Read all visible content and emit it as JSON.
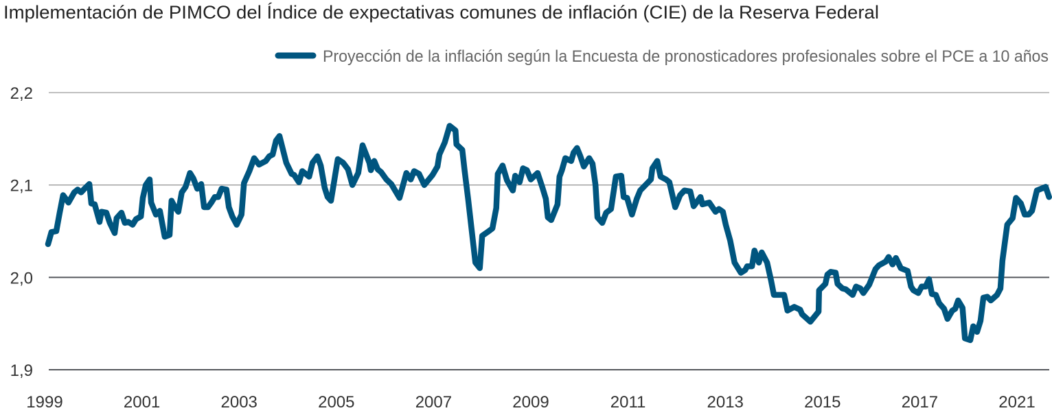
{
  "chart_data": {
    "type": "line",
    "title": "Implementación de PIMCO del Índice de expectativas comunes de inflación (CIE) de la Reserva Federal",
    "xlabel": "",
    "ylabel": "",
    "ylim": [
      1.9,
      2.2
    ],
    "yticks": [
      "2,2",
      "2,1",
      "2,0",
      "1,9"
    ],
    "ytick_values": [
      2.2,
      2.1,
      2.0,
      1.9
    ],
    "xtick_labels": [
      "1999",
      "2001",
      "2003",
      "2005",
      "2007",
      "2009",
      "2011",
      "2013",
      "2015",
      "2017",
      "2021"
    ],
    "grid": true,
    "legend_position": "top-right",
    "colors": {
      "line": "#00557f",
      "grid_light": "#9a9a9a",
      "grid_dark": "#55575c",
      "title": "#222222",
      "legend_text": "#666666",
      "tick_text": "#333333"
    },
    "series": [
      {
        "name": "Proyección de la inflación según la Encuesta de pronosticadores profesionales sobre el PCE a 10 años",
        "points": [
          [
            1999.07,
            2.036
          ],
          [
            1999.14,
            2.049
          ],
          [
            1999.24,
            2.05
          ],
          [
            1999.31,
            2.07
          ],
          [
            1999.38,
            2.089
          ],
          [
            1999.49,
            2.081
          ],
          [
            1999.61,
            2.092
          ],
          [
            1999.68,
            2.095
          ],
          [
            1999.75,
            2.092
          ],
          [
            1999.82,
            2.096
          ],
          [
            1999.92,
            2.101
          ],
          [
            1999.96,
            2.08
          ],
          [
            2000.03,
            2.079
          ],
          [
            2000.13,
            2.06
          ],
          [
            2000.17,
            2.071
          ],
          [
            2000.27,
            2.07
          ],
          [
            2000.34,
            2.059
          ],
          [
            2000.44,
            2.048
          ],
          [
            2000.48,
            2.064
          ],
          [
            2000.58,
            2.07
          ],
          [
            2000.65,
            2.059
          ],
          [
            2000.72,
            2.06
          ],
          [
            2000.81,
            2.057
          ],
          [
            2000.88,
            2.063
          ],
          [
            2000.98,
            2.066
          ],
          [
            2001.02,
            2.086
          ],
          [
            2001.08,
            2.1
          ],
          [
            2001.16,
            2.106
          ],
          [
            2001.19,
            2.081
          ],
          [
            2001.29,
            2.068
          ],
          [
            2001.37,
            2.072
          ],
          [
            2001.47,
            2.044
          ],
          [
            2001.57,
            2.046
          ],
          [
            2001.61,
            2.083
          ],
          [
            2001.68,
            2.076
          ],
          [
            2001.75,
            2.071
          ],
          [
            2001.82,
            2.092
          ],
          [
            2001.9,
            2.098
          ],
          [
            2001.99,
            2.113
          ],
          [
            2002.06,
            2.107
          ],
          [
            2002.14,
            2.096
          ],
          [
            2002.22,
            2.101
          ],
          [
            2002.28,
            2.076
          ],
          [
            2002.36,
            2.076
          ],
          [
            2002.43,
            2.081
          ],
          [
            2002.5,
            2.087
          ],
          [
            2002.57,
            2.087
          ],
          [
            2002.64,
            2.096
          ],
          [
            2002.74,
            2.095
          ],
          [
            2002.79,
            2.076
          ],
          [
            2002.86,
            2.066
          ],
          [
            2002.95,
            2.057
          ],
          [
            2003.05,
            2.068
          ],
          [
            2003.1,
            2.102
          ],
          [
            2003.21,
            2.115
          ],
          [
            2003.31,
            2.129
          ],
          [
            2003.41,
            2.122
          ],
          [
            2003.55,
            2.126
          ],
          [
            2003.62,
            2.131
          ],
          [
            2003.69,
            2.133
          ],
          [
            2003.76,
            2.148
          ],
          [
            2003.83,
            2.153
          ],
          [
            2003.97,
            2.124
          ],
          [
            2004.08,
            2.112
          ],
          [
            2004.13,
            2.111
          ],
          [
            2004.23,
            2.103
          ],
          [
            2004.3,
            2.115
          ],
          [
            2004.44,
            2.109
          ],
          [
            2004.51,
            2.124
          ],
          [
            2004.61,
            2.131
          ],
          [
            2004.68,
            2.121
          ],
          [
            2004.76,
            2.097
          ],
          [
            2004.82,
            2.087
          ],
          [
            2004.89,
            2.083
          ],
          [
            2005.03,
            2.128
          ],
          [
            2005.14,
            2.124
          ],
          [
            2005.24,
            2.117
          ],
          [
            2005.33,
            2.1
          ],
          [
            2005.45,
            2.113
          ],
          [
            2005.54,
            2.143
          ],
          [
            2005.68,
            2.124
          ],
          [
            2005.71,
            2.116
          ],
          [
            2005.78,
            2.126
          ],
          [
            2005.85,
            2.117
          ],
          [
            2005.92,
            2.114
          ],
          [
            2006.03,
            2.106
          ],
          [
            2006.13,
            2.101
          ],
          [
            2006.3,
            2.086
          ],
          [
            2006.44,
            2.113
          ],
          [
            2006.53,
            2.106
          ],
          [
            2006.6,
            2.115
          ],
          [
            2006.7,
            2.112
          ],
          [
            2006.81,
            2.1
          ],
          [
            2006.98,
            2.111
          ],
          [
            2007.08,
            2.12
          ],
          [
            2007.12,
            2.133
          ],
          [
            2007.23,
            2.146
          ],
          [
            2007.33,
            2.164
          ],
          [
            2007.45,
            2.159
          ],
          [
            2007.47,
            2.144
          ],
          [
            2007.59,
            2.138
          ],
          [
            2007.64,
            2.115
          ],
          [
            2007.71,
            2.085
          ],
          [
            2007.86,
            2.016
          ],
          [
            2007.95,
            2.01
          ],
          [
            2008.0,
            2.045
          ],
          [
            2008.11,
            2.049
          ],
          [
            2008.21,
            2.053
          ],
          [
            2008.29,
            2.075
          ],
          [
            2008.32,
            2.112
          ],
          [
            2008.42,
            2.121
          ],
          [
            2008.51,
            2.105
          ],
          [
            2008.63,
            2.094
          ],
          [
            2008.68,
            2.11
          ],
          [
            2008.77,
            2.103
          ],
          [
            2008.84,
            2.118
          ],
          [
            2008.92,
            2.116
          ],
          [
            2009.0,
            2.106
          ],
          [
            2009.14,
            2.113
          ],
          [
            2009.24,
            2.097
          ],
          [
            2009.31,
            2.085
          ],
          [
            2009.35,
            2.065
          ],
          [
            2009.42,
            2.062
          ],
          [
            2009.55,
            2.079
          ],
          [
            2009.59,
            2.109
          ],
          [
            2009.64,
            2.116
          ],
          [
            2009.71,
            2.129
          ],
          [
            2009.83,
            2.126
          ],
          [
            2009.88,
            2.135
          ],
          [
            2009.95,
            2.14
          ],
          [
            2010.02,
            2.131
          ],
          [
            2010.09,
            2.12
          ],
          [
            2010.2,
            2.129
          ],
          [
            2010.27,
            2.123
          ],
          [
            2010.33,
            2.1
          ],
          [
            2010.37,
            2.065
          ],
          [
            2010.47,
            2.059
          ],
          [
            2010.55,
            2.07
          ],
          [
            2010.65,
            2.074
          ],
          [
            2010.75,
            2.109
          ],
          [
            2010.86,
            2.11
          ],
          [
            2010.91,
            2.087
          ],
          [
            2010.98,
            2.086
          ],
          [
            2011.08,
            2.068
          ],
          [
            2011.18,
            2.085
          ],
          [
            2011.25,
            2.094
          ],
          [
            2011.36,
            2.1
          ],
          [
            2011.47,
            2.106
          ],
          [
            2011.5,
            2.118
          ],
          [
            2011.6,
            2.126
          ],
          [
            2011.67,
            2.109
          ],
          [
            2011.78,
            2.106
          ],
          [
            2011.85,
            2.103
          ],
          [
            2011.97,
            2.076
          ],
          [
            2012.07,
            2.089
          ],
          [
            2012.16,
            2.094
          ],
          [
            2012.28,
            2.093
          ],
          [
            2012.35,
            2.077
          ],
          [
            2012.49,
            2.087
          ],
          [
            2012.53,
            2.079
          ],
          [
            2012.67,
            2.081
          ],
          [
            2012.8,
            2.071
          ],
          [
            2012.87,
            2.074
          ],
          [
            2012.95,
            2.071
          ],
          [
            2013.01,
            2.057
          ],
          [
            2013.1,
            2.04
          ],
          [
            2013.19,
            2.016
          ],
          [
            2013.32,
            2.005
          ],
          [
            2013.41,
            2.008
          ],
          [
            2013.45,
            2.012
          ],
          [
            2013.55,
            2.012
          ],
          [
            2013.6,
            2.029
          ],
          [
            2013.69,
            2.016
          ],
          [
            2013.75,
            2.027
          ],
          [
            2013.86,
            2.016
          ],
          [
            2013.94,
            1.997
          ],
          [
            2014.0,
            1.981
          ],
          [
            2014.21,
            1.981
          ],
          [
            2014.28,
            1.964
          ],
          [
            2014.42,
            1.968
          ],
          [
            2014.54,
            1.965
          ],
          [
            2014.58,
            1.96
          ],
          [
            2014.75,
            1.952
          ],
          [
            2014.92,
            1.963
          ],
          [
            2014.93,
            1.986
          ],
          [
            2015.06,
            1.993
          ],
          [
            2015.1,
            2.003
          ],
          [
            2015.17,
            2.006
          ],
          [
            2015.27,
            2.005
          ],
          [
            2015.31,
            1.993
          ],
          [
            2015.41,
            1.988
          ],
          [
            2015.48,
            1.987
          ],
          [
            2015.62,
            1.981
          ],
          [
            2015.69,
            1.99
          ],
          [
            2015.78,
            1.988
          ],
          [
            2015.84,
            1.983
          ],
          [
            2015.96,
            1.992
          ],
          [
            2016.09,
            2.009
          ],
          [
            2016.16,
            2.013
          ],
          [
            2016.3,
            2.017
          ],
          [
            2016.36,
            2.022
          ],
          [
            2016.44,
            2.014
          ],
          [
            2016.51,
            2.021
          ],
          [
            2016.61,
            2.01
          ],
          [
            2016.75,
            2.007
          ],
          [
            2016.82,
            1.99
          ],
          [
            2016.87,
            1.986
          ],
          [
            2016.97,
            1.983
          ],
          [
            2017.04,
            1.99
          ],
          [
            2017.12,
            1.99
          ],
          [
            2017.19,
            1.998
          ],
          [
            2017.25,
            1.982
          ],
          [
            2017.33,
            1.981
          ],
          [
            2017.4,
            1.972
          ],
          [
            2017.5,
            1.966
          ],
          [
            2017.57,
            1.955
          ],
          [
            2017.67,
            1.964
          ],
          [
            2017.73,
            1.966
          ],
          [
            2017.79,
            1.975
          ],
          [
            2017.88,
            1.967
          ],
          [
            2017.93,
            1.934
          ],
          [
            2018.04,
            1.932
          ],
          [
            2018.1,
            1.947
          ],
          [
            2018.18,
            1.941
          ],
          [
            2018.25,
            1.953
          ],
          [
            2018.31,
            1.978
          ],
          [
            2018.39,
            1.979
          ],
          [
            2018.46,
            1.975
          ],
          [
            2018.59,
            1.981
          ],
          [
            2018.66,
            1.988
          ],
          [
            2018.7,
            2.018
          ],
          [
            2018.8,
            2.057
          ],
          [
            2018.91,
            2.064
          ],
          [
            2018.98,
            2.086
          ],
          [
            2019.08,
            2.08
          ],
          [
            2019.16,
            2.068
          ],
          [
            2019.24,
            2.068
          ],
          [
            2019.31,
            2.072
          ],
          [
            2019.41,
            2.094
          ],
          [
            2019.59,
            2.098
          ],
          [
            2019.66,
            2.087
          ]
        ]
      }
    ]
  }
}
